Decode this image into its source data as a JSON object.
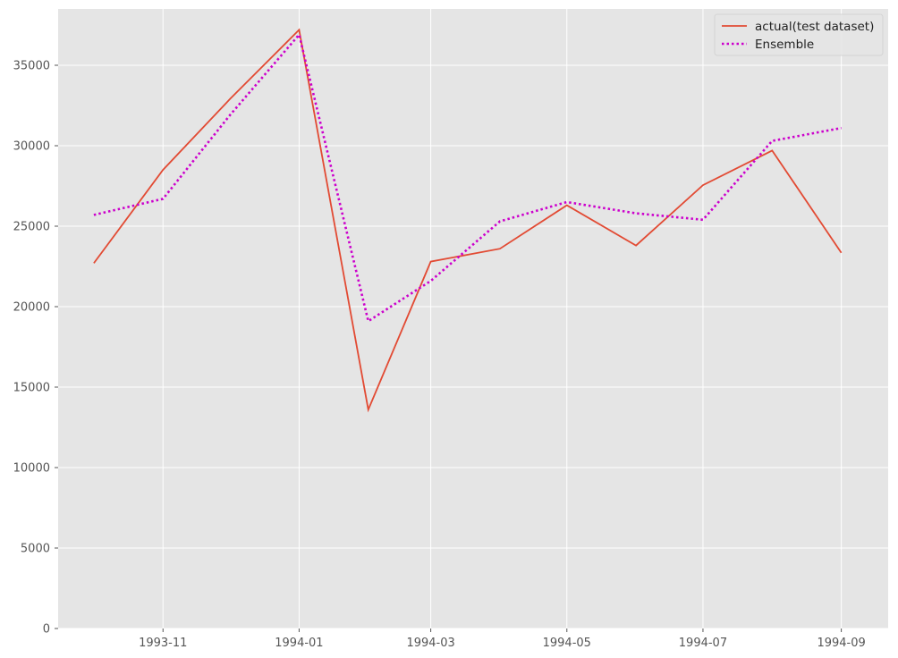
{
  "chart_data": {
    "type": "line",
    "title": "",
    "xlabel": "",
    "ylabel": "",
    "x": [
      "1993-10-01",
      "1993-11-01",
      "1993-12-01",
      "1994-01-01",
      "1994-02-01",
      "1994-03-01",
      "1994-04-01",
      "1994-05-01",
      "1994-06-01",
      "1994-07-01",
      "1994-08-01",
      "1994-09-01"
    ],
    "x_ticks": [
      "1993-11",
      "1994-01",
      "1994-03",
      "1994-05",
      "1994-07",
      "1994-09"
    ],
    "ylim": [
      0,
      38500
    ],
    "y_ticks": [
      0,
      5000,
      10000,
      15000,
      20000,
      25000,
      30000,
      35000
    ],
    "grid": true,
    "legend_position": "top-right",
    "series": [
      {
        "name": "actual(test dataset)",
        "color": "#e24a33",
        "style": "solid",
        "values": [
          22700,
          28500,
          32900,
          37200,
          13600,
          22800,
          23600,
          26300,
          23800,
          27550,
          29700,
          23350
        ]
      },
      {
        "name": "Ensemble",
        "color": "#cc00cc",
        "style": "dotted",
        "values": [
          25700,
          26700,
          31900,
          36900,
          19100,
          21600,
          25300,
          26500,
          25800,
          25400,
          30300,
          31100
        ]
      }
    ]
  }
}
